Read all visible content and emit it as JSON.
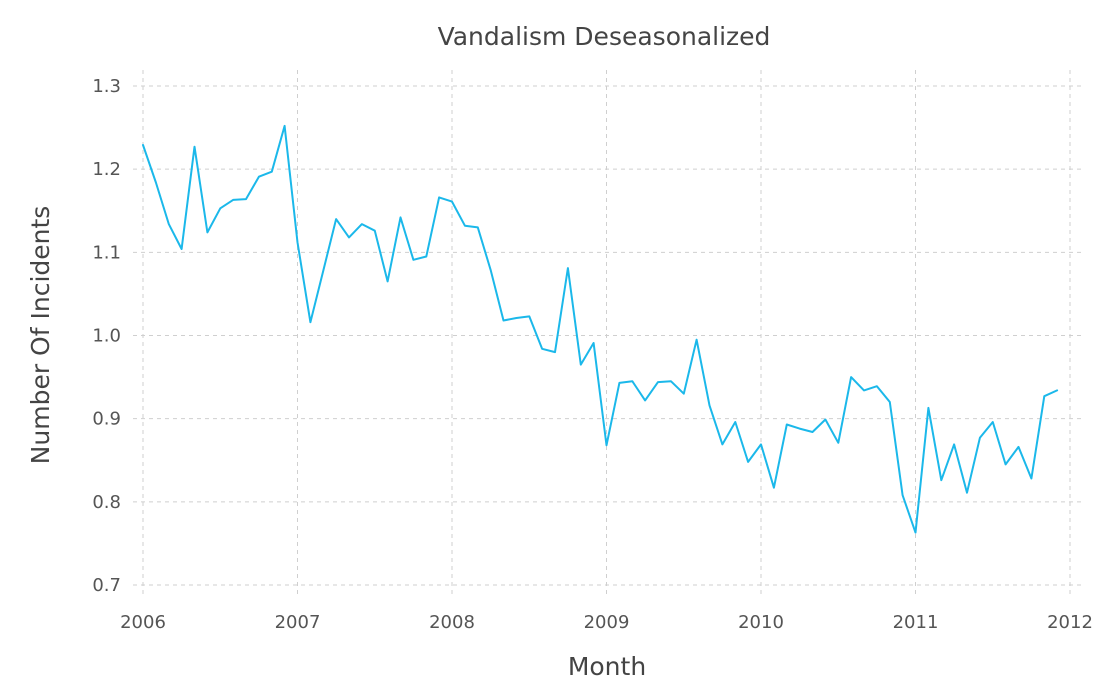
{
  "chart_data": {
    "type": "line",
    "title": "Vandalism Deseasonalized",
    "xlabel": "Month",
    "ylabel": "Number Of Incidents",
    "xlim": [
      "2006-01",
      "2012-01"
    ],
    "ylim": [
      0.68,
      1.31
    ],
    "grid": true,
    "x_ticks": [
      "2006",
      "2007",
      "2008",
      "2009",
      "2010",
      "2011",
      "2012"
    ],
    "y_ticks": [
      "0.7",
      "0.8",
      "0.9",
      "1.0",
      "1.1",
      "1.2",
      "1.3"
    ],
    "series": [
      {
        "color": "#1bb8ea",
        "x": [
          "2006-01",
          "2006-02",
          "2006-03",
          "2006-04",
          "2006-05",
          "2006-06",
          "2006-07",
          "2006-08",
          "2006-09",
          "2006-10",
          "2006-11",
          "2006-12",
          "2007-01",
          "2007-02",
          "2007-03",
          "2007-04",
          "2007-05",
          "2007-06",
          "2007-07",
          "2007-08",
          "2007-09",
          "2007-10",
          "2007-11",
          "2007-12",
          "2008-01",
          "2008-02",
          "2008-03",
          "2008-04",
          "2008-05",
          "2008-06",
          "2008-07",
          "2008-08",
          "2008-09",
          "2008-10",
          "2008-11",
          "2008-12",
          "2009-01",
          "2009-02",
          "2009-03",
          "2009-04",
          "2009-05",
          "2009-06",
          "2009-07",
          "2009-08",
          "2009-09",
          "2009-10",
          "2009-11",
          "2009-12",
          "2010-01",
          "2010-02",
          "2010-03",
          "2010-04",
          "2010-05",
          "2010-06",
          "2010-07",
          "2010-08",
          "2010-09",
          "2010-10",
          "2010-11",
          "2010-12",
          "2011-01",
          "2011-02",
          "2011-03",
          "2011-04",
          "2011-05",
          "2011-06",
          "2011-07",
          "2011-08",
          "2011-09",
          "2011-10",
          "2011-11",
          "2011-12"
        ],
        "values": [
          1.229,
          1.184,
          1.134,
          1.104,
          1.227,
          1.124,
          1.153,
          1.163,
          1.164,
          1.191,
          1.197,
          1.252,
          1.112,
          1.016,
          1.078,
          1.14,
          1.118,
          1.134,
          1.126,
          1.065,
          1.142,
          1.091,
          1.095,
          1.166,
          1.161,
          1.132,
          1.13,
          1.079,
          1.018,
          1.021,
          1.023,
          0.984,
          0.98,
          1.081,
          0.965,
          0.991,
          0.868,
          0.943,
          0.945,
          0.922,
          0.944,
          0.945,
          0.93,
          0.995,
          0.916,
          0.869,
          0.896,
          0.848,
          0.869,
          0.817,
          0.893,
          0.888,
          0.884,
          0.899,
          0.871,
          0.95,
          0.934,
          0.939,
          0.92,
          0.808,
          0.763,
          0.913,
          0.826,
          0.869,
          0.811,
          0.877,
          0.896,
          0.845,
          0.866,
          0.828,
          0.927,
          0.934
        ]
      }
    ]
  }
}
